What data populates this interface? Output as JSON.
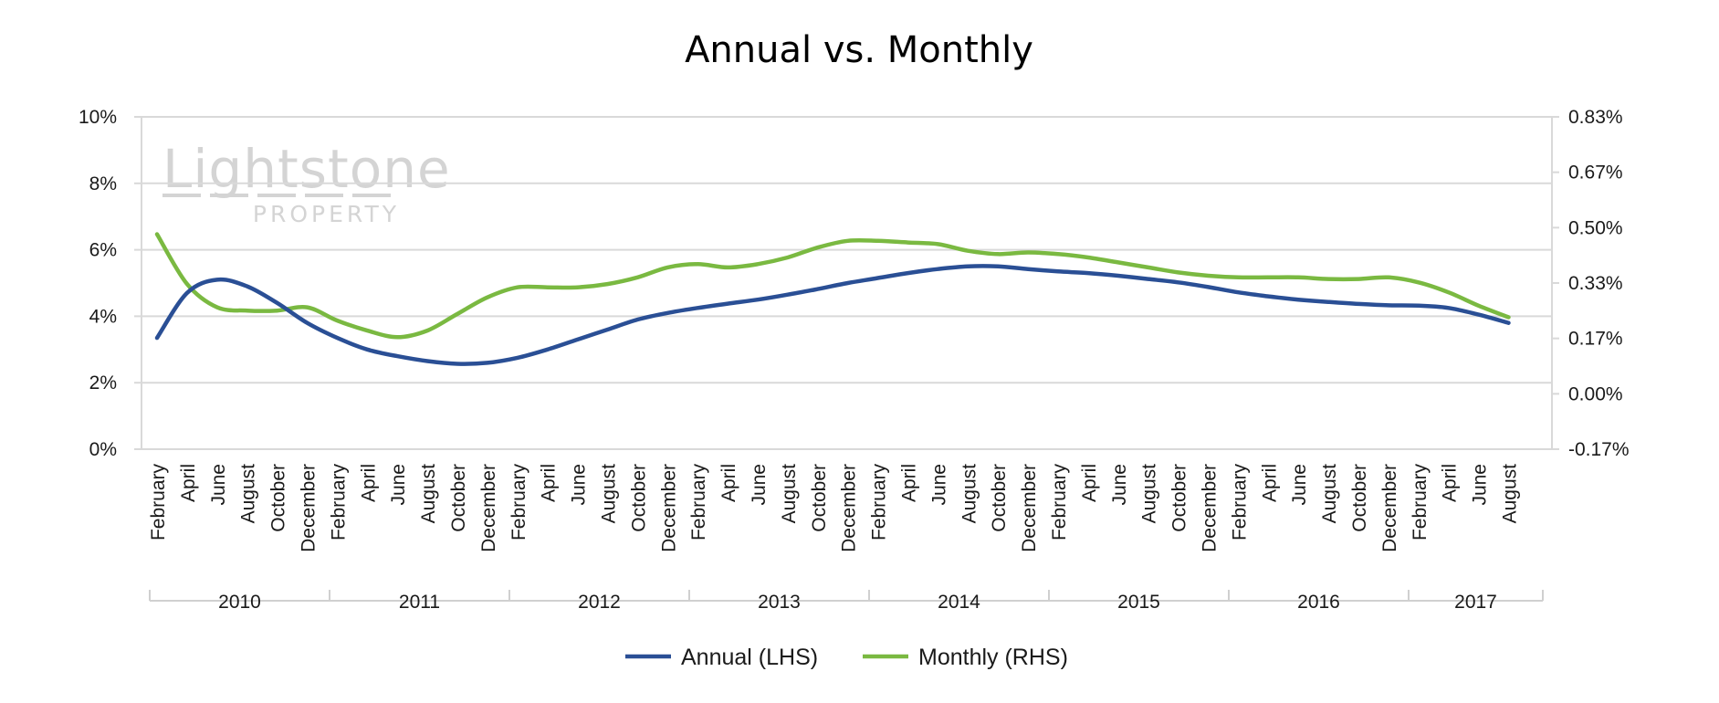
{
  "chart_data": {
    "type": "line",
    "title": "Annual vs. Monthly",
    "x": [
      "2010-02",
      "2010-04",
      "2010-06",
      "2010-08",
      "2010-10",
      "2010-12",
      "2011-02",
      "2011-04",
      "2011-06",
      "2011-08",
      "2011-10",
      "2011-12",
      "2012-02",
      "2012-04",
      "2012-06",
      "2012-08",
      "2012-10",
      "2012-12",
      "2013-02",
      "2013-04",
      "2013-06",
      "2013-08",
      "2013-10",
      "2013-12",
      "2014-02",
      "2014-04",
      "2014-06",
      "2014-08",
      "2014-10",
      "2014-12",
      "2015-02",
      "2015-04",
      "2015-06",
      "2015-08",
      "2015-10",
      "2015-12",
      "2016-02",
      "2016-04",
      "2016-06",
      "2016-08",
      "2016-10",
      "2016-12",
      "2017-02",
      "2017-04",
      "2017-06",
      "2017-08"
    ],
    "x_tick_labels": [
      "February",
      "April",
      "June",
      "August",
      "October",
      "December",
      "February",
      "April",
      "June",
      "August",
      "October",
      "December",
      "February",
      "April",
      "June",
      "August",
      "October",
      "December",
      "February",
      "April",
      "June",
      "August",
      "October",
      "December",
      "February",
      "April",
      "June",
      "August",
      "October",
      "December",
      "February",
      "April",
      "June",
      "August",
      "October",
      "December",
      "February",
      "April",
      "June",
      "August",
      "October",
      "December",
      "February",
      "April",
      "June",
      "August"
    ],
    "x_group_labels": [
      "2010",
      "2011",
      "2012",
      "2013",
      "2014",
      "2015",
      "2016",
      "2017"
    ],
    "y_left_ticks": [
      "0%",
      "2%",
      "4%",
      "6%",
      "8%",
      "10%"
    ],
    "y_right_ticks": [
      "-0.17%",
      "0.00%",
      "0.17%",
      "0.33%",
      "0.50%",
      "0.67%",
      "0.83%"
    ],
    "ylim_left": [
      0,
      10
    ],
    "ylim_right": [
      -0.167,
      0.833
    ],
    "grid": true,
    "legend_position": "bottom",
    "series": [
      {
        "name": "Annual (LHS)",
        "axis": "left",
        "color": "#2a4f95",
        "values": [
          3.35,
          4.7,
          5.1,
          4.9,
          4.4,
          3.8,
          3.35,
          3.0,
          2.8,
          2.65,
          2.57,
          2.6,
          2.75,
          3.0,
          3.3,
          3.6,
          3.9,
          4.1,
          4.25,
          4.38,
          4.5,
          4.65,
          4.82,
          5.0,
          5.15,
          5.3,
          5.42,
          5.5,
          5.5,
          5.42,
          5.35,
          5.3,
          5.22,
          5.12,
          5.02,
          4.88,
          4.72,
          4.6,
          4.5,
          4.43,
          4.37,
          4.33,
          4.32,
          4.25,
          4.05,
          3.8
        ]
      },
      {
        "name": "Monthly (RHS)",
        "axis": "right",
        "color": "#7ab941",
        "values": [
          0.48,
          0.33,
          0.26,
          0.25,
          0.25,
          0.26,
          0.22,
          0.19,
          0.17,
          0.19,
          0.24,
          0.29,
          0.32,
          0.32,
          0.32,
          0.33,
          0.35,
          0.38,
          0.39,
          0.38,
          0.39,
          0.41,
          0.44,
          0.46,
          0.46,
          0.455,
          0.45,
          0.43,
          0.42,
          0.425,
          0.42,
          0.41,
          0.395,
          0.38,
          0.365,
          0.355,
          0.35,
          0.35,
          0.35,
          0.345,
          0.345,
          0.35,
          0.335,
          0.305,
          0.265,
          0.23
        ]
      }
    ]
  },
  "logo": {
    "main": "Lightstone",
    "sub": "PROPERTY"
  }
}
